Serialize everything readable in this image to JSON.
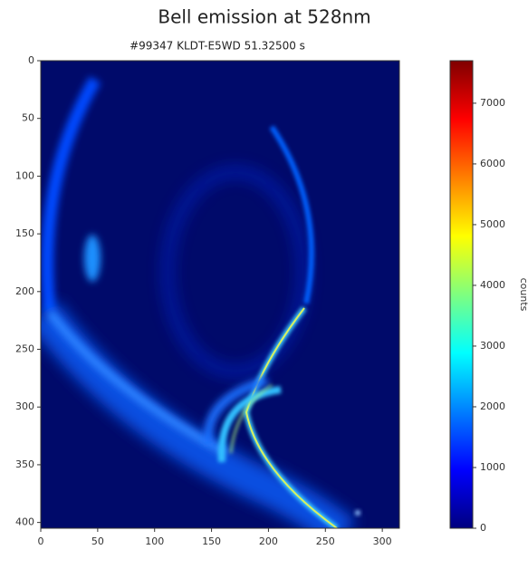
{
  "chart_data": {
    "type": "image",
    "title": "Bell emission at 528nm",
    "subtitle": "#99347 KLDT-E5WD 51.32500 s",
    "xlim": [
      0,
      315
    ],
    "xticks": [
      0,
      50,
      100,
      150,
      200,
      250,
      300
    ],
    "ylim": [
      0,
      405
    ],
    "yticks": [
      0,
      50,
      100,
      150,
      200,
      250,
      300,
      350,
      400
    ],
    "y_inverted": true,
    "colorbar": {
      "lim": [
        0,
        7700
      ],
      "ticks": [
        0,
        1000,
        2000,
        3000,
        4000,
        5000,
        6000,
        7000
      ],
      "label": "counts",
      "colormap": "jet"
    }
  }
}
